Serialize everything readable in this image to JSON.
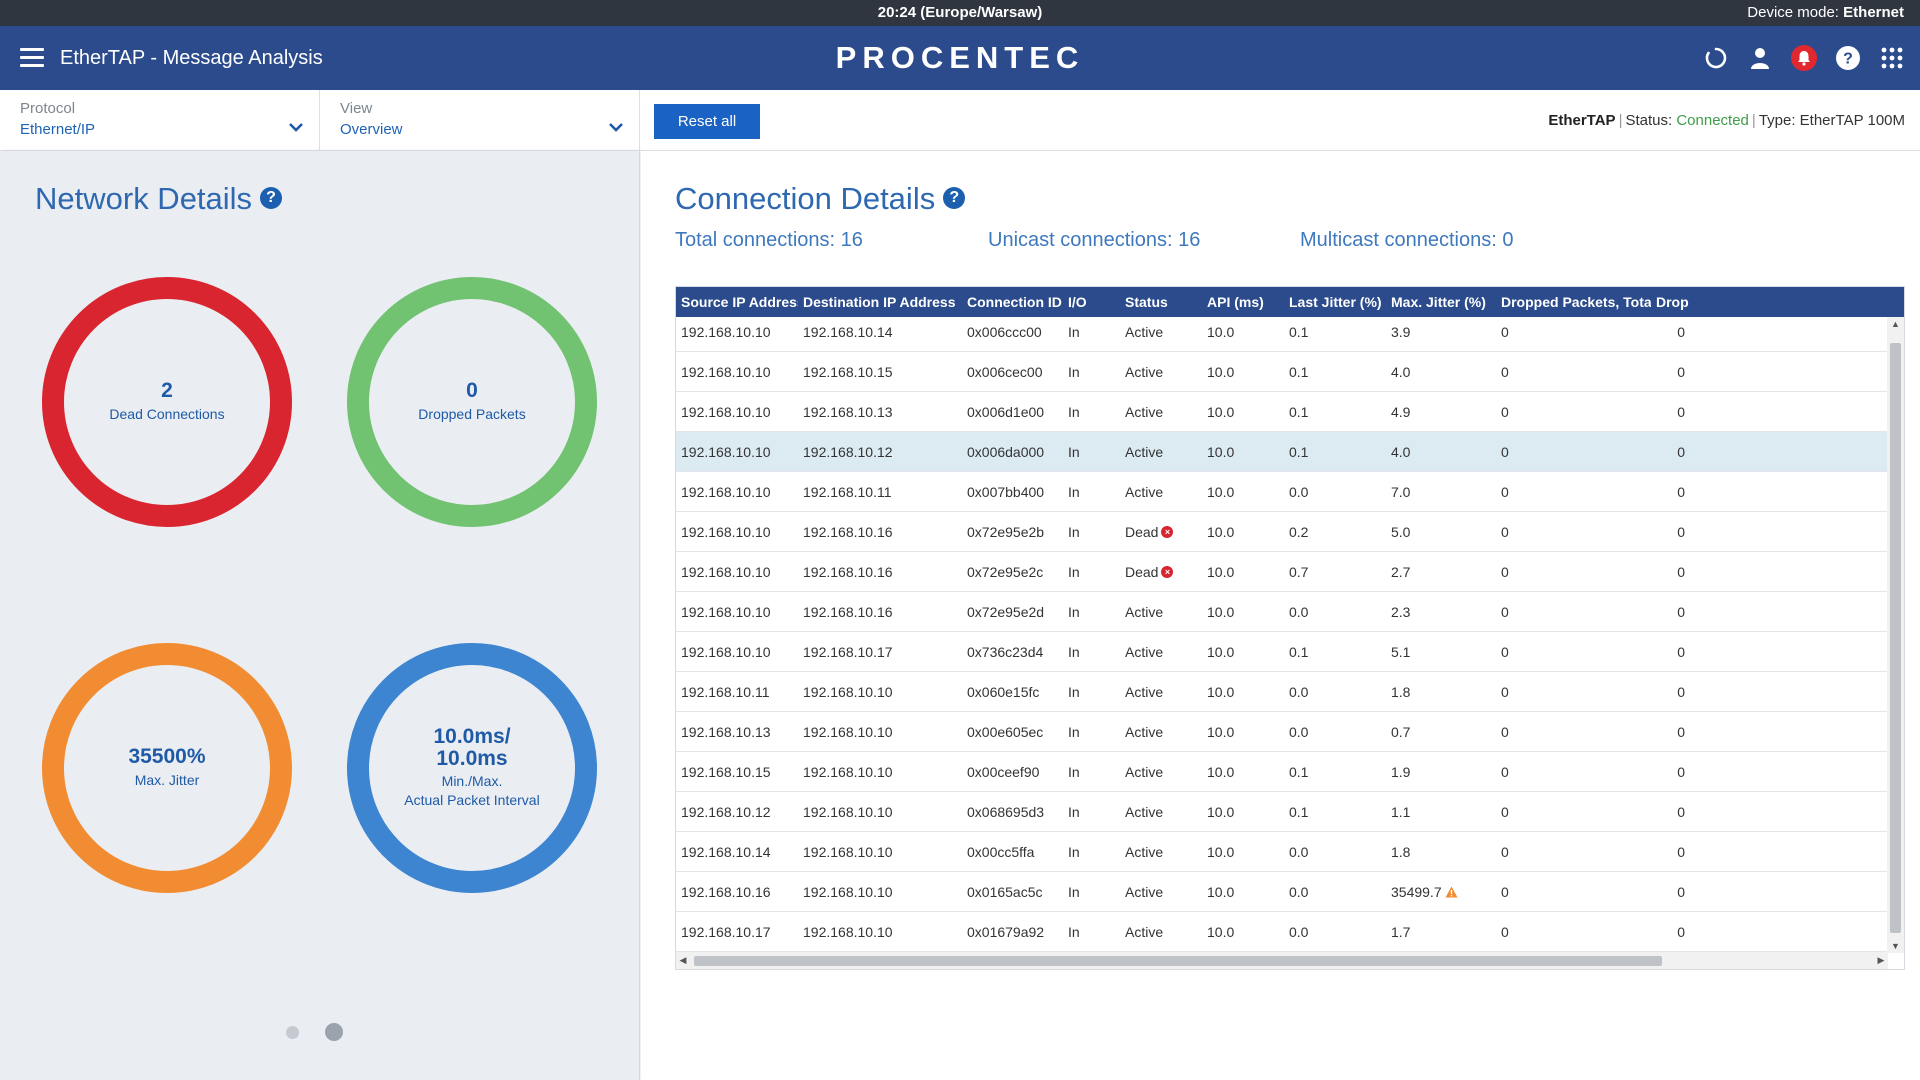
{
  "system_bar": {
    "time": "20:24 (Europe/Warsaw)",
    "device_mode_label": "Device mode:",
    "device_mode_value": "Ethernet"
  },
  "header": {
    "title": "EtherTAP - Message Analysis",
    "brand": "PROCENTEC",
    "icons": [
      "refresh-icon",
      "user-icon",
      "bell-icon",
      "help-icon",
      "apps-grid-icon"
    ]
  },
  "toolbar": {
    "protocol_label": "Protocol",
    "protocol_value": "Ethernet/IP",
    "view_label": "View",
    "view_value": "Overview",
    "reset_label": "Reset all",
    "device_name": "EtherTAP",
    "status_label": "Status:",
    "status_value": "Connected",
    "type_label": "Type: EtherTAP 100M"
  },
  "network_details": {
    "title": "Network Details",
    "dead_connections": {
      "value": "2",
      "label": "Dead Connections"
    },
    "dropped_packets": {
      "value": "0",
      "label": "Dropped Packets"
    },
    "max_jitter": {
      "value": "35500%",
      "label": "Max. Jitter"
    },
    "packet_interval": {
      "value_line1": "10.0ms/",
      "value_line2": "10.0ms",
      "label_line1": "Min./Max.",
      "label_line2": "Actual Packet Interval"
    },
    "carousel_pages": 2,
    "carousel_active": 2
  },
  "connection_details": {
    "title": "Connection Details",
    "total": "Total connections: 16",
    "unicast": "Unicast connections: 16",
    "multicast": "Multicast connections: 0",
    "columns": [
      "Source IP Address ...",
      "Destination IP Address",
      "Connection ID ...",
      "I/O",
      "Status",
      "API (ms)",
      "Last Jitter (%) ...",
      "Max. Jitter (%)",
      "Dropped Packets, Total ...",
      "Drop"
    ],
    "rows": [
      [
        "192.168.10.10",
        "192.168.10.14",
        "0x006ccc00",
        "In",
        "Active",
        "10.0",
        "0.1",
        "3.9",
        "0",
        "0"
      ],
      [
        "192.168.10.10",
        "192.168.10.15",
        "0x006cec00",
        "In",
        "Active",
        "10.0",
        "0.1",
        "4.0",
        "0",
        "0"
      ],
      [
        "192.168.10.10",
        "192.168.10.13",
        "0x006d1e00",
        "In",
        "Active",
        "10.0",
        "0.1",
        "4.9",
        "0",
        "0"
      ],
      [
        "192.168.10.10",
        "192.168.10.12",
        "0x006da000",
        "In",
        "Active",
        "10.0",
        "0.1",
        "4.0",
        "0",
        "0"
      ],
      [
        "192.168.10.10",
        "192.168.10.11",
        "0x007bb400",
        "In",
        "Active",
        "10.0",
        "0.0",
        "7.0",
        "0",
        "0"
      ],
      [
        "192.168.10.10",
        "192.168.10.16",
        "0x72e95e2b",
        "In",
        "Dead",
        "10.0",
        "0.2",
        "5.0",
        "0",
        "0"
      ],
      [
        "192.168.10.10",
        "192.168.10.16",
        "0x72e95e2c",
        "In",
        "Dead",
        "10.0",
        "0.7",
        "2.7",
        "0",
        "0"
      ],
      [
        "192.168.10.10",
        "192.168.10.16",
        "0x72e95e2d",
        "In",
        "Active",
        "10.0",
        "0.0",
        "2.3",
        "0",
        "0"
      ],
      [
        "192.168.10.10",
        "192.168.10.17",
        "0x736c23d4",
        "In",
        "Active",
        "10.0",
        "0.1",
        "5.1",
        "0",
        "0"
      ],
      [
        "192.168.10.11",
        "192.168.10.10",
        "0x060e15fc",
        "In",
        "Active",
        "10.0",
        "0.0",
        "1.8",
        "0",
        "0"
      ],
      [
        "192.168.10.13",
        "192.168.10.10",
        "0x00e605ec",
        "In",
        "Active",
        "10.0",
        "0.0",
        "0.7",
        "0",
        "0"
      ],
      [
        "192.168.10.15",
        "192.168.10.10",
        "0x00ceef90",
        "In",
        "Active",
        "10.0",
        "0.1",
        "1.9",
        "0",
        "0"
      ],
      [
        "192.168.10.12",
        "192.168.10.10",
        "0x068695d3",
        "In",
        "Active",
        "10.0",
        "0.1",
        "1.1",
        "0",
        "0"
      ],
      [
        "192.168.10.14",
        "192.168.10.10",
        "0x00cc5ffa",
        "In",
        "Active",
        "10.0",
        "0.0",
        "1.8",
        "0",
        "0"
      ],
      [
        "192.168.10.16",
        "192.168.10.10",
        "0x0165ac5c",
        "In",
        "Active",
        "10.0",
        "0.0",
        "35499.7",
        "0",
        "0"
      ],
      [
        "192.168.10.17",
        "192.168.10.10",
        "0x01679a92",
        "In",
        "Active",
        "10.0",
        "0.0",
        "1.7",
        "0",
        "0"
      ]
    ],
    "selected_row": 3,
    "warning_row": 14
  },
  "colors": {
    "header_bg": "#2b4b8c",
    "dead_ring": "#d9252f",
    "dropped_ring": "#71c271",
    "jitter_ring": "#f28c32",
    "interval_ring": "#3d85d0",
    "connected": "#3f9c4a",
    "accent_button": "#1a62c4"
  }
}
